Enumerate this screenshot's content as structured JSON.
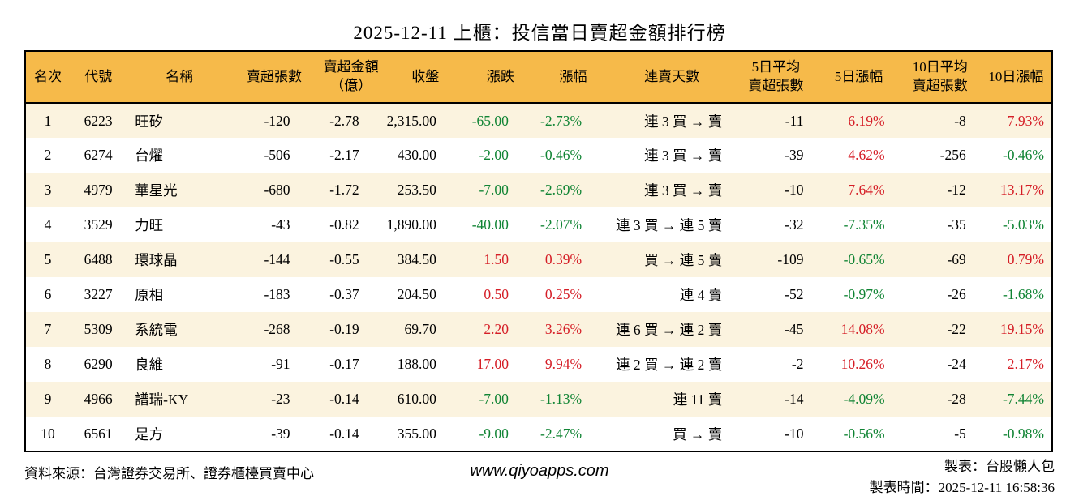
{
  "title": "2025-12-11 上櫃：投信當日賣超金額排行榜",
  "colors": {
    "header_bg": "#f6ba4a",
    "row_stripe": "#fbf3df",
    "up_red": "#d51d26",
    "down_green": "#108434",
    "border": "#000000"
  },
  "chart_data": {
    "type": "table",
    "title": "2025-12-11 上櫃：投信當日賣超金額排行榜",
    "columns": [
      "名次",
      "代號",
      "名稱",
      "賣超張數",
      "賣超金額\n（億）",
      "收盤",
      "漲跌",
      "漲幅",
      "連賣天數",
      "5日平均\n賣超張數",
      "5日漲幅",
      "10日平均\n賣超張數",
      "10日漲幅"
    ],
    "colored_columns": [
      6,
      7,
      10,
      12
    ],
    "color_rule": "negative values green, positive values red",
    "rows": [
      [
        "1",
        "6223",
        "旺矽",
        "-120",
        "-2.78",
        "2,315.00",
        "-65.00",
        "-2.73%",
        "連 3 買 → 賣",
        "-11",
        "6.19%",
        "-8",
        "7.93%"
      ],
      [
        "2",
        "6274",
        "台燿",
        "-506",
        "-2.17",
        "430.00",
        "-2.00",
        "-0.46%",
        "連 3 買 → 賣",
        "-39",
        "4.62%",
        "-256",
        "-0.46%"
      ],
      [
        "3",
        "4979",
        "華星光",
        "-680",
        "-1.72",
        "253.50",
        "-7.00",
        "-2.69%",
        "連 3 買 → 賣",
        "-10",
        "7.64%",
        "-12",
        "13.17%"
      ],
      [
        "4",
        "3529",
        "力旺",
        "-43",
        "-0.82",
        "1,890.00",
        "-40.00",
        "-2.07%",
        "連 3 買 → 連 5 賣",
        "-32",
        "-7.35%",
        "-35",
        "-5.03%"
      ],
      [
        "5",
        "6488",
        "環球晶",
        "-144",
        "-0.55",
        "384.50",
        "1.50",
        "0.39%",
        "買 → 連 5 賣",
        "-109",
        "-0.65%",
        "-69",
        "0.79%"
      ],
      [
        "6",
        "3227",
        "原相",
        "-183",
        "-0.37",
        "204.50",
        "0.50",
        "0.25%",
        "連 4 賣",
        "-52",
        "-0.97%",
        "-26",
        "-1.68%"
      ],
      [
        "7",
        "5309",
        "系統電",
        "-268",
        "-0.19",
        "69.70",
        "2.20",
        "3.26%",
        "連 6 買 → 連 2 賣",
        "-45",
        "14.08%",
        "-22",
        "19.15%"
      ],
      [
        "8",
        "6290",
        "良維",
        "-91",
        "-0.17",
        "188.00",
        "17.00",
        "9.94%",
        "連 2 買 → 連 2 賣",
        "-2",
        "10.26%",
        "-24",
        "2.17%"
      ],
      [
        "9",
        "4966",
        "譜瑞-KY",
        "-23",
        "-0.14",
        "610.00",
        "-7.00",
        "-1.13%",
        "連 11 賣",
        "-14",
        "-4.09%",
        "-28",
        "-7.44%"
      ],
      [
        "10",
        "6561",
        "是方",
        "-39",
        "-0.14",
        "355.00",
        "-9.00",
        "-2.47%",
        "買 → 賣",
        "-10",
        "-0.56%",
        "-5",
        "-0.98%"
      ]
    ]
  },
  "footer": {
    "source": "資料來源：台灣證券交易所、證券櫃檯買賣中心",
    "website": "www.qiyoapps.com",
    "maker": "製表：台股懶人包",
    "made_time": "製表時間：2025-12-11 16:58:36"
  }
}
